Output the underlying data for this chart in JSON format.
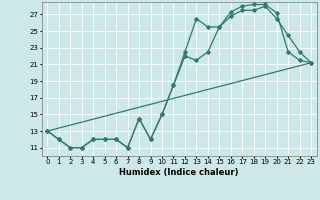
{
  "xlabel": "Humidex (Indice chaleur)",
  "background_color": "#cce8e8",
  "line_color": "#2d7a6e",
  "xlim": [
    -0.5,
    23.5
  ],
  "ylim": [
    10.0,
    28.5
  ],
  "yticks": [
    11,
    13,
    15,
    17,
    19,
    21,
    23,
    25,
    27
  ],
  "xtick_labels": [
    "0",
    "1",
    "2",
    "3",
    "4",
    "5",
    "6",
    "7",
    "8",
    "9",
    "10",
    "11",
    "12",
    "13",
    "14",
    "15",
    "16",
    "17",
    "18",
    "19",
    "20",
    "21",
    "22",
    "23"
  ],
  "line1_x": [
    0,
    1,
    2,
    3,
    4,
    5,
    6,
    7,
    8,
    9,
    10,
    11,
    12,
    13,
    14,
    15,
    16,
    17,
    18,
    19,
    20,
    21,
    22,
    23
  ],
  "line1_y": [
    13,
    12,
    11,
    11,
    12,
    12,
    12,
    11,
    14.5,
    12,
    15,
    18.5,
    22.5,
    26.5,
    25.5,
    25.5,
    27.3,
    28,
    28.2,
    28.2,
    27.2,
    22.5,
    21.5,
    21.2
  ],
  "line2_x": [
    0,
    1,
    2,
    3,
    4,
    5,
    6,
    7,
    8,
    9,
    10,
    11,
    12,
    13,
    14,
    15,
    16,
    17,
    18,
    19,
    20,
    21,
    22,
    23
  ],
  "line2_y": [
    13,
    12,
    11,
    11,
    12,
    12,
    12,
    11,
    14.5,
    12,
    15,
    18.5,
    22,
    21.5,
    22.5,
    25.5,
    26.8,
    27.5,
    27.5,
    28,
    26.5,
    24.5,
    22.5,
    21.2
  ],
  "line3_x": [
    0,
    23
  ],
  "line3_y": [
    13,
    21.2
  ]
}
